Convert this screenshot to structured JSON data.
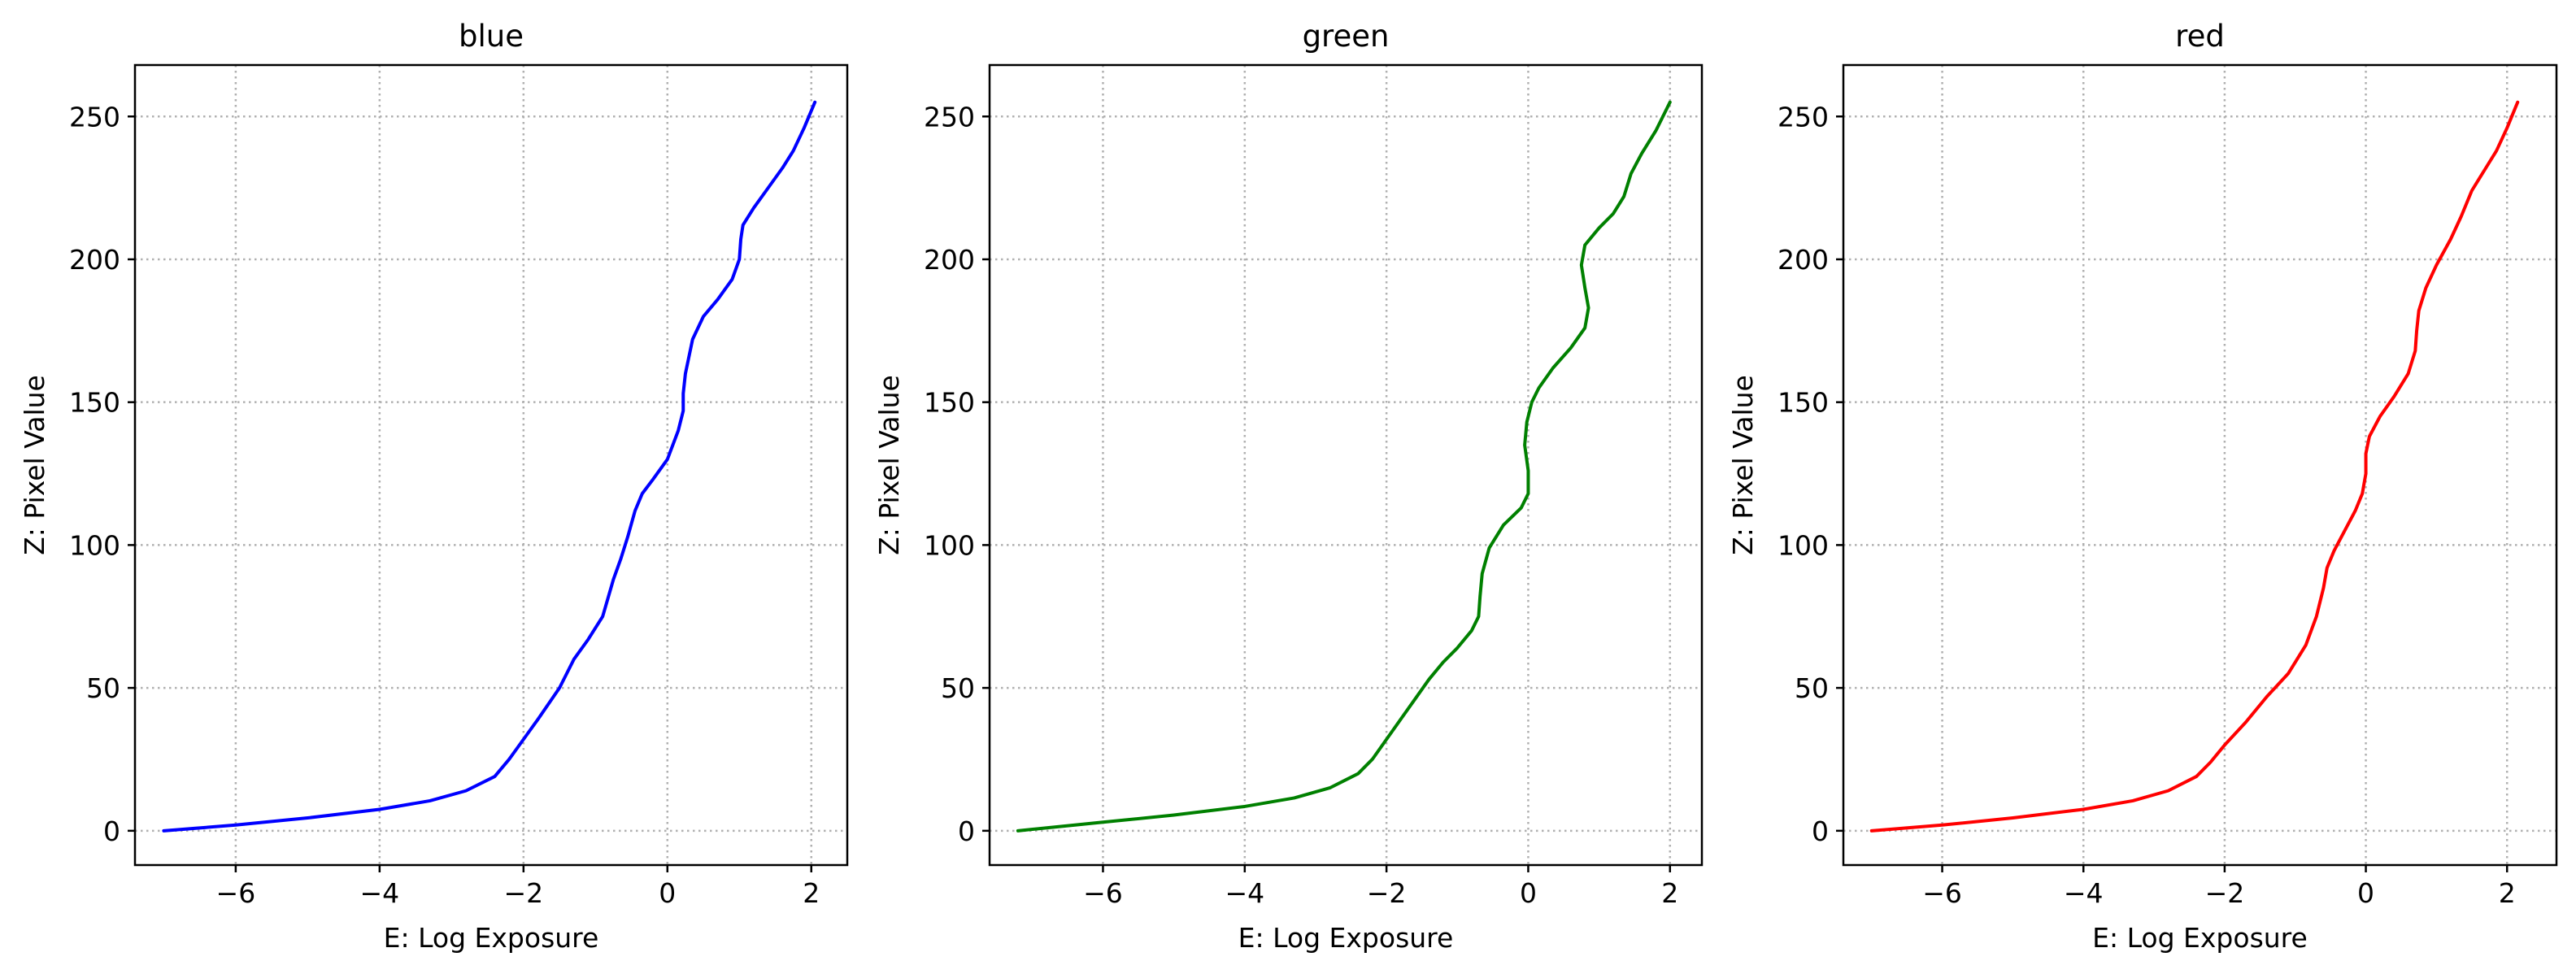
{
  "chart_data": [
    {
      "type": "line",
      "title": "blue",
      "xlabel": "E: Log Exposure",
      "ylabel": "Z: Pixel Value",
      "xlim": [
        -7.4,
        2.5
      ],
      "ylim": [
        -12,
        268
      ],
      "xticks": [
        -6,
        -4,
        -2,
        0,
        2
      ],
      "yticks": [
        0,
        50,
        100,
        150,
        200,
        250
      ],
      "xtick_labels": [
        "−6",
        "−4",
        "−2",
        "0",
        "2"
      ],
      "ytick_labels": [
        "0",
        "50",
        "100",
        "150",
        "200",
        "250"
      ],
      "grid": true,
      "color": "#0000ff",
      "series": [
        {
          "x": [
            -7.0,
            -6.0,
            -5.0,
            -4.0,
            -3.3,
            -2.8,
            -2.4,
            -2.2,
            -2.0,
            -1.8,
            -1.5,
            -1.3,
            -1.1,
            -0.9,
            -0.75,
            -0.65,
            -0.55,
            -0.45,
            -0.35,
            -0.2,
            0.0,
            0.15,
            0.22,
            0.22,
            0.25,
            0.35,
            0.5,
            0.7,
            0.9,
            1.0,
            1.02,
            1.05,
            1.2,
            1.4,
            1.6,
            1.75,
            1.9,
            2.05
          ],
          "y": [
            0,
            2,
            4.5,
            7.5,
            10.5,
            14,
            19,
            25,
            32,
            39,
            50,
            60,
            67,
            75,
            88,
            95,
            103,
            112,
            118,
            123,
            130,
            140,
            147,
            153,
            160,
            172,
            180,
            186,
            193,
            200,
            207,
            212,
            218,
            225,
            232,
            238,
            246,
            255
          ]
        }
      ]
    },
    {
      "type": "line",
      "title": "green",
      "xlabel": "E: Log Exposure",
      "ylabel": "Z: Pixel Value",
      "xlim": [
        -7.6,
        2.45
      ],
      "ylim": [
        -12,
        268
      ],
      "xticks": [
        -6,
        -4,
        -2,
        0,
        2
      ],
      "yticks": [
        0,
        50,
        100,
        150,
        200,
        250
      ],
      "xtick_labels": [
        "−6",
        "−4",
        "−2",
        "0",
        "2"
      ],
      "ytick_labels": [
        "0",
        "50",
        "100",
        "150",
        "200",
        "250"
      ],
      "grid": true,
      "color": "#008000",
      "series": [
        {
          "x": [
            -7.2,
            -6.0,
            -5.0,
            -4.0,
            -3.3,
            -2.8,
            -2.4,
            -2.2,
            -2.0,
            -1.8,
            -1.6,
            -1.4,
            -1.2,
            -1.0,
            -0.8,
            -0.7,
            -0.68,
            -0.65,
            -0.55,
            -0.35,
            -0.1,
            0.0,
            0.0,
            -0.05,
            -0.02,
            0.05,
            0.15,
            0.35,
            0.6,
            0.8,
            0.85,
            0.8,
            0.75,
            0.8,
            1.0,
            1.2,
            1.35,
            1.45,
            1.6,
            1.8,
            2.0
          ],
          "y": [
            0,
            3,
            5.5,
            8.5,
            11.5,
            15,
            20,
            25,
            32,
            39,
            46,
            53,
            59,
            64,
            70,
            75,
            82,
            90,
            99,
            107,
            113,
            118,
            126,
            135,
            143,
            150,
            155,
            162,
            169,
            176,
            183,
            190,
            198,
            205,
            211,
            216,
            222,
            230,
            237,
            245,
            255
          ]
        }
      ]
    },
    {
      "type": "line",
      "title": "red",
      "xlabel": "E: Log Exposure",
      "ylabel": "Z: Pixel Value",
      "xlim": [
        -7.4,
        2.7
      ],
      "ylim": [
        -12,
        268
      ],
      "xticks": [
        -6,
        -4,
        -2,
        0,
        2
      ],
      "yticks": [
        0,
        50,
        100,
        150,
        200,
        250
      ],
      "xtick_labels": [
        "−6",
        "−4",
        "−2",
        "0",
        "2"
      ],
      "ytick_labels": [
        "0",
        "50",
        "100",
        "150",
        "200",
        "250"
      ],
      "grid": true,
      "color": "#ff0000",
      "series": [
        {
          "x": [
            -7.0,
            -6.0,
            -5.0,
            -4.0,
            -3.3,
            -2.8,
            -2.4,
            -2.2,
            -2.0,
            -1.7,
            -1.4,
            -1.1,
            -0.85,
            -0.7,
            -0.6,
            -0.55,
            -0.45,
            -0.3,
            -0.15,
            -0.05,
            0.0,
            0.0,
            0.05,
            0.2,
            0.4,
            0.6,
            0.7,
            0.72,
            0.75,
            0.85,
            1.0,
            1.2,
            1.35,
            1.5,
            1.7,
            1.85,
            2.0,
            2.15
          ],
          "y": [
            0,
            2,
            4.5,
            7.5,
            10.5,
            14,
            19,
            24,
            30,
            38,
            47,
            55,
            65,
            75,
            85,
            92,
            98,
            105,
            112,
            118,
            125,
            132,
            138,
            145,
            152,
            160,
            168,
            175,
            182,
            190,
            198,
            207,
            215,
            224,
            232,
            238,
            246,
            255
          ]
        }
      ]
    }
  ]
}
